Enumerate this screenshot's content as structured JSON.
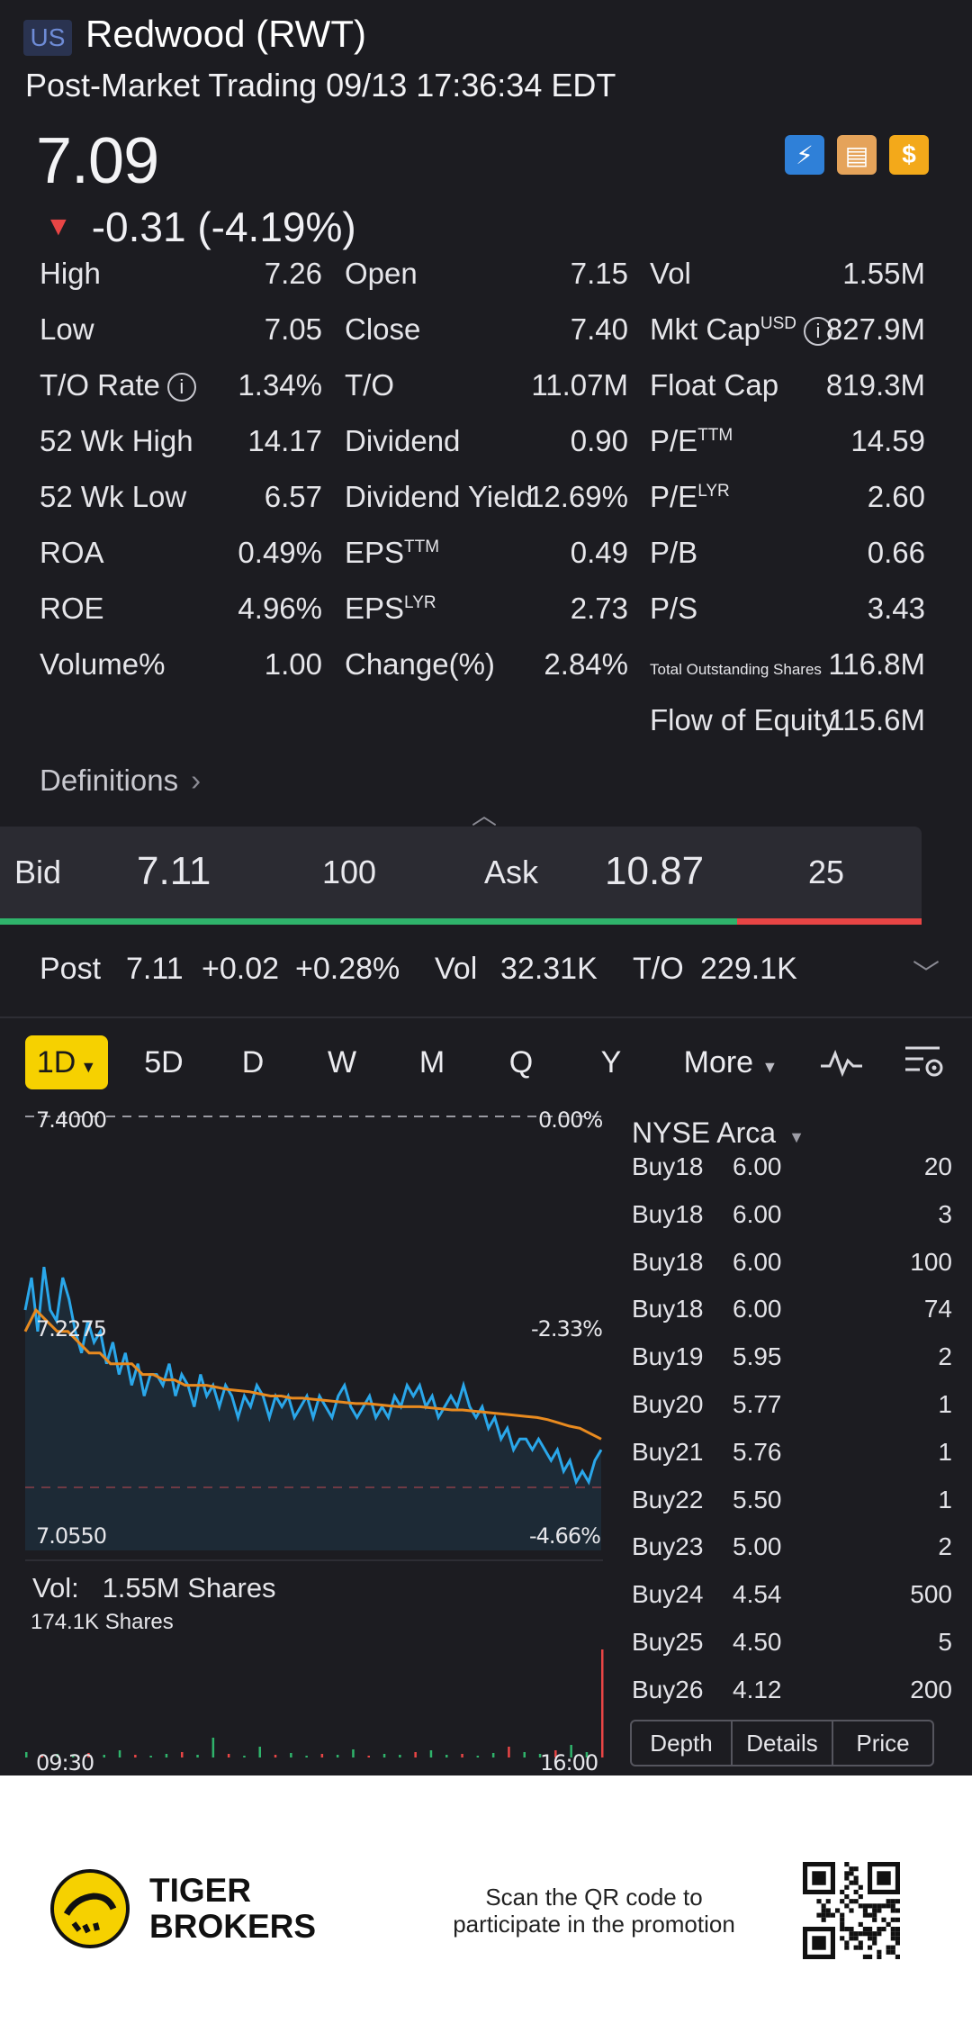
{
  "header": {
    "market_badge": "US",
    "title": "Redwood (RWT)",
    "subtitle": "Post-Market Trading 09/13 17:36:34 EDT"
  },
  "quote": {
    "price": "7.09",
    "change": "-0.31 (-4.19%)",
    "direction": "down",
    "badges": [
      "flash-1-icon",
      "education-icon",
      "dollar-icon"
    ]
  },
  "stats": [
    [
      {
        "label": "High",
        "value": "7.26"
      },
      {
        "label": "Open",
        "value": "7.15"
      },
      {
        "label": "Vol",
        "value": "1.55M"
      }
    ],
    [
      {
        "label": "Low",
        "value": "7.05"
      },
      {
        "label": "Close",
        "value": "7.40"
      },
      {
        "label": "Mkt Cap",
        "sup": "USD",
        "info": true,
        "value": "827.9M"
      }
    ],
    [
      {
        "label": "T/O Rate",
        "info": true,
        "value": "1.34%"
      },
      {
        "label": "T/O",
        "value": "11.07M"
      },
      {
        "label": "Float Cap",
        "value": "819.3M"
      }
    ],
    [
      {
        "label": "52 Wk High",
        "value": "14.17"
      },
      {
        "label": "Dividend",
        "value": "0.90"
      },
      {
        "label": "P/E",
        "sup": "TTM",
        "value": "14.59"
      }
    ],
    [
      {
        "label": "52 Wk Low",
        "value": "6.57"
      },
      {
        "label": "Dividend Yield",
        "value": "12.69%"
      },
      {
        "label": "P/E",
        "sup": "LYR",
        "value": "2.60"
      }
    ],
    [
      {
        "label": "ROA",
        "value": "0.49%"
      },
      {
        "label": "EPS",
        "sup": "TTM",
        "value": "0.49"
      },
      {
        "label": "P/B",
        "value": "0.66"
      }
    ],
    [
      {
        "label": "ROE",
        "value": "4.96%"
      },
      {
        "label": "EPS",
        "sup": "LYR",
        "value": "2.73"
      },
      {
        "label": "P/S",
        "value": "3.43"
      }
    ],
    [
      {
        "label": "Volume%",
        "value": "1.00"
      },
      {
        "label": "Change(%)",
        "value": "2.84%"
      },
      {
        "label": "Total Outstanding Shares",
        "small": true,
        "value": "116.8M"
      }
    ],
    [
      null,
      null,
      {
        "label": "Flow of Equity",
        "value": "115.6M"
      }
    ]
  ],
  "definitions_label": "Definitions",
  "bid_ask": {
    "bid_label": "Bid",
    "bid_price": "7.11",
    "bid_size": "100",
    "ask_label": "Ask",
    "ask_price": "10.87",
    "ask_size": "25",
    "bid_ratio": 0.8
  },
  "post_market": {
    "label": "Post",
    "price": "7.11",
    "change": "+0.02",
    "change_pct": "+0.28%",
    "vol_label": "Vol",
    "vol": "32.31K",
    "to_label": "T/O",
    "to": "229.1K"
  },
  "chart_tabs": [
    "1D",
    "5D",
    "D",
    "W",
    "M",
    "Q",
    "Y",
    "More"
  ],
  "active_tab": "1D",
  "chart_data": {
    "type": "line",
    "price_labels": {
      "top": "7.4000",
      "mid": "7.2275",
      "bottom": "7.0550"
    },
    "pct_labels": {
      "top": "0.00%",
      "mid": "-2.33%",
      "bottom": "-4.66%"
    },
    "ylim": [
      7.055,
      7.4
    ],
    "prev_close": 7.4,
    "series": [
      {
        "color": "#2aa7ea",
        "values": [
          7.22,
          7.25,
          7.2,
          7.26,
          7.22,
          7.21,
          7.25,
          7.23,
          7.2,
          7.18,
          7.21,
          7.19,
          7.2,
          7.17,
          7.19,
          7.16,
          7.18,
          7.15,
          7.17,
          7.14,
          7.16,
          7.16,
          7.15,
          7.17,
          7.14,
          7.16,
          7.15,
          7.13,
          7.16,
          7.14,
          7.15,
          7.13,
          7.15,
          7.14,
          7.12,
          7.14,
          7.13,
          7.15,
          7.14,
          7.12,
          7.14,
          7.13,
          7.14,
          7.12,
          7.13,
          7.14,
          7.12,
          7.14,
          7.13,
          7.12,
          7.14,
          7.15,
          7.13,
          7.12,
          7.13,
          7.14,
          7.12,
          7.13,
          7.12,
          7.14,
          7.13,
          7.15,
          7.14,
          7.15,
          7.13,
          7.14,
          7.12,
          7.13,
          7.14,
          7.13,
          7.15,
          7.13,
          7.12,
          7.13,
          7.11,
          7.12,
          7.1,
          7.11,
          7.09,
          7.1,
          7.1,
          7.09,
          7.1,
          7.09,
          7.08,
          7.09,
          7.07,
          7.08,
          7.06,
          7.07,
          7.06,
          7.08,
          7.09
        ]
      },
      {
        "color": "#e88a1f",
        "values": [
          7.2,
          7.22,
          7.21,
          7.2,
          7.2,
          7.19,
          7.18,
          7.18,
          7.17,
          7.17,
          7.17,
          7.16,
          7.16,
          7.155,
          7.155,
          7.15,
          7.15,
          7.15,
          7.148,
          7.146,
          7.145,
          7.144,
          7.142,
          7.14,
          7.14,
          7.138,
          7.138,
          7.137,
          7.136,
          7.135,
          7.134,
          7.133,
          7.133,
          7.132,
          7.131,
          7.13,
          7.13,
          7.13,
          7.129,
          7.128,
          7.127,
          7.127,
          7.126,
          7.125,
          7.124,
          7.123,
          7.122,
          7.121,
          7.12,
          7.118,
          7.115,
          7.112,
          7.11,
          7.105,
          7.1
        ]
      }
    ],
    "volume_label": "Vol:",
    "volume_value": "1.55M Shares",
    "volume_max": "174.1K Shares",
    "x_labels": [
      "09:30",
      "16:00"
    ]
  },
  "order_book": {
    "exchange": "NYSE Arca",
    "rows": [
      {
        "side": "Buy18",
        "price": "6.00",
        "size": "20"
      },
      {
        "side": "Buy18",
        "price": "6.00",
        "size": "3"
      },
      {
        "side": "Buy18",
        "price": "6.00",
        "size": "100"
      },
      {
        "side": "Buy18",
        "price": "6.00",
        "size": "74"
      },
      {
        "side": "Buy19",
        "price": "5.95",
        "size": "2"
      },
      {
        "side": "Buy20",
        "price": "5.77",
        "size": "1"
      },
      {
        "side": "Buy21",
        "price": "5.76",
        "size": "1"
      },
      {
        "side": "Buy22",
        "price": "5.50",
        "size": "1"
      },
      {
        "side": "Buy23",
        "price": "5.00",
        "size": "2"
      },
      {
        "side": "Buy24",
        "price": "4.54",
        "size": "500"
      },
      {
        "side": "Buy25",
        "price": "4.50",
        "size": "5"
      },
      {
        "side": "Buy26",
        "price": "4.12",
        "size": "200"
      }
    ],
    "tabs": [
      "Depth",
      "Details",
      "Price"
    ]
  },
  "footer": {
    "brand_line1": "TIGER",
    "brand_line2": "BROKERS",
    "promo_line1": "Scan the QR code to",
    "promo_line2": "participate in the promotion"
  }
}
